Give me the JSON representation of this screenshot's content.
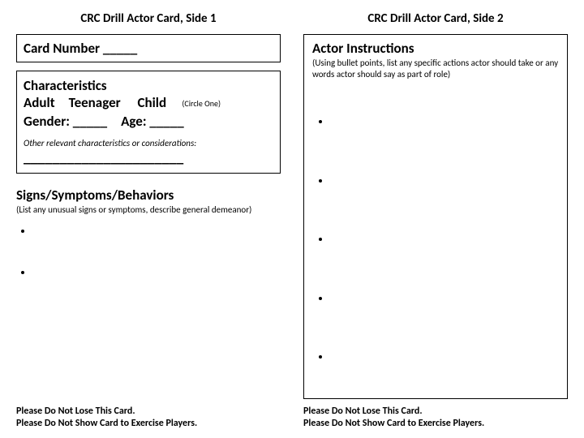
{
  "side1": {
    "title": "CRC Drill Actor Card, Side 1",
    "cardNumber": "Card Number _____",
    "characteristics": {
      "heading": "Characteristics",
      "line1_options": "Adult Teenager  Child",
      "circleOne": "(Circle One)",
      "line2": "Gender: _____ Age: _____",
      "otherRelevant": "Other relevant characteristics or considerations:",
      "blank": "______________________"
    },
    "signs": {
      "heading": "Signs/Symptoms/Behaviors",
      "note": "(List any unusual signs or symptoms, describe general demeanor)"
    },
    "footer1": "Please Do Not Lose This Card.",
    "footer2": "Please Do Not Show Card to Exercise Players."
  },
  "side2": {
    "title": "CRC Drill Actor Card, Side 2",
    "instructions": {
      "heading": "Actor Instructions",
      "note": "(Using bullet points, list any specific actions actor should take or any words actor should say as part of role)"
    },
    "footer1": "Please Do Not Lose This Card.",
    "footer2": "Please Do Not Show Card to Exercise Players."
  },
  "colors": {
    "text": "#000000",
    "background": "#ffffff",
    "border": "#000000"
  }
}
